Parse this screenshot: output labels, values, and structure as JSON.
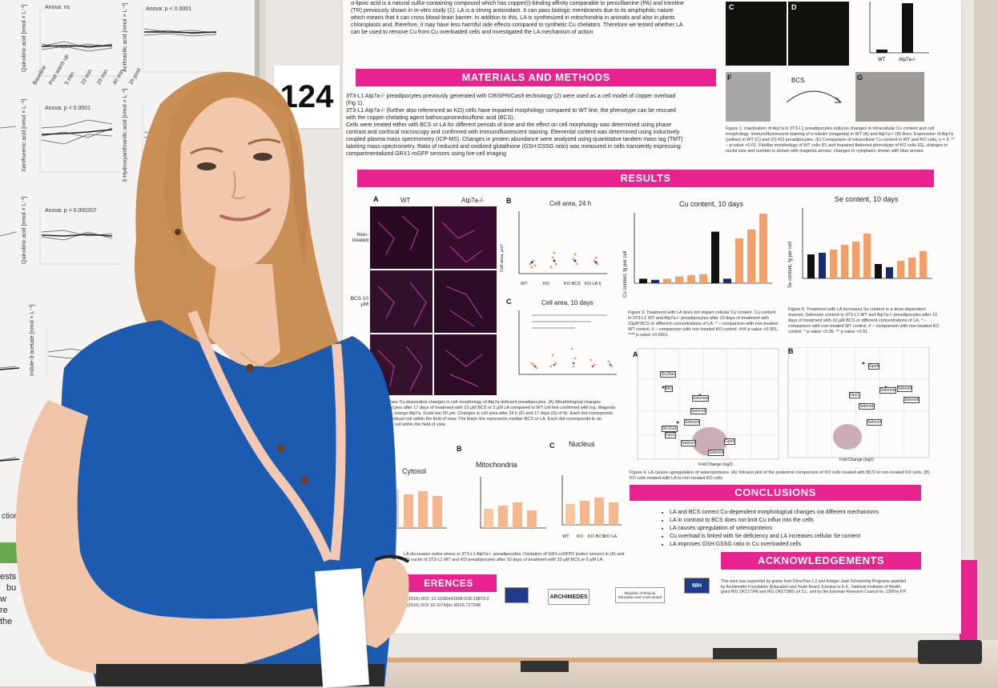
{
  "poster_number": "124",
  "poster": {
    "intro_lines": [
      "α-lipoic acid is a natural sulfur-containing compound which has copper(I)-binding affinity comparable to penicillamine (PA) and trientine",
      "(TR) previously shown in in-vitro study (1). LA is a strong antioxidant. It can pass biologic membranes due to its amphiphilic nature",
      "which means that it can cross blood-brain barrier. In addition to this, LA is synthesized in mitochondria in animals and also in plants",
      "chloroplasts and, therefore, it may have less harmful side effects compared to synthetic Cu chelators. Therefore we tested whether LA",
      "can be used to remove Cu from Cu overloaded cells and investigated the LA mechanism of action"
    ],
    "materials_title": "MATERIALS AND METHODS",
    "materials_lines": [
      "3T3-L1 Atp7a-/- preadipocytes previously generated with CRISPR/Cas9 technology (2) were used as a cell model of copper overload",
      "(Fig 1).",
      "3T3-L1 Atp7a-/- (further also referenced as KO) cells have impaired morphology compared to WT line, the phenotype can be rescued",
      "with the copper-chelating agent bathocuproinedisulfonic acid (BCS).",
      "Cells were treated either with BCS or LA for different periods of time and the effect on cell morphology was determined using phase",
      "contrast and confocal microscopy and confirmed with immunofluorescent staining. Elemental content was determined using inductively",
      "coupled plasma mass spectrometry (ICP-MS). Changes in protein abundance were analyzed using quantitative tandem mass tag (TMT)",
      "labeling mass-spectrometry. Ratio of reduced and oxidized glutathione (GSH:GSSG ratio) was measured in cells transiently expressing",
      "compartmentalized GRX1-roGFP sensors using live-cell imaging"
    ],
    "results_title": "RESULTS",
    "conclusions_title": "CONCLUSIONS",
    "conclusions": [
      "LA and BCS correct Cu-dependent morphological changes via different mechanisms",
      "LA in contrast to BCS does not limit Cu influx into the cells",
      "LA causes upregulation of selenoproteins",
      "Cu overload is linked with Se deficiency and LA increases cellular Se content",
      "LA improves GSH:GSSG ratio in Cu overloaded cells"
    ],
    "ack_title": "ACKNOWLEDGEMENTS",
    "ack_lines": [
      "This work was supported by grants from Dora Plus 1.2 and Kristjan Jaak Scholarship Programs awarded",
      "by Archimedes Foundation (Education and Youth Board, Estonia) to E.K., National Institutes of Health",
      "grant R01 DK117248 and R01 DK071865-14 S.L. and by the Estonian Research Council no. 1289 to P.P."
    ],
    "references_title": "ERENCES",
    "refs": [
      "(2016) DOI: 10.1038/s41598-018-19873-2",
      "(2016) DOI 10.1074/jbc.M116.727248"
    ],
    "panel_labels": {
      "A": "A",
      "B": "B",
      "C": "C",
      "D": "D",
      "F": "F",
      "G": "G"
    },
    "fig1_small_labels": [
      "WT",
      "Atp7a-/-",
      "BCS",
      "WT",
      "Atp7a-/-"
    ],
    "fig1_caption": "Figure 1. Inactivation of Atp7a in 3T3-L1 preadipocytes induces changes in intracellular Cu content and cell morphology. Immunofluorescent staining of α-tubulin (magenta) in WT (A) and Atp7a-/- (B) lines. Expression of Atp7a (yellow) in WT (C) and (D) KO preadipocytes. (E) Comparison of intracellular Cu content in WT and KO cells, n = 3, ** – p-value <0.01. Fibrillar morphology of WT cells (F) and impaired flattened phenotype of KO cells (G), changes in nuclei size and number is shown with magenta arrows, changes in cytoplasm shown with blue arrows.",
    "micro_col_labels": [
      "WT",
      "Atp7a-/-"
    ],
    "micro_row_labels": [
      "Non-treated",
      "BCS 10 µM"
    ],
    "cell_area_24": "Cell area, 24 h",
    "cell_area_10": "Cell area, 10 days",
    "cell_area_axis": "Cell area, µm²",
    "cell_area_cats": [
      "WT",
      "KO",
      "KO BCS",
      "KO LA 5"
    ],
    "cu_title": "Cu content, 10 days",
    "cu_axis": "Cu content, fg per cell",
    "se_title": "Se content, 10 days",
    "se_axis": "Se content, fg per cell",
    "fig3_caption": "Figure 3. Treatment with LA does not impact cellular Cu content. Cu content in 3T3-L1 WT and Atp7a-/- preadipocytes after 10 days of treatment with 10µM BCS or different concentrations of LA. * – comparison with non-treated WT control, # – comparison with non-treated KO control. ### p-value <0.001, **** p-value <0.0001",
    "fig5_caption": "Figure 5. Treatment with LA increases Se content in a dose-dependent manner. Selenium content in 3T3-L1 WT and Atp7a-/- preadipocytes after 10 days of treatment with 10 µM BCS or different concentrations of LA. * – comparison with non-treated WT control, # – comparison with non-treated KO control. * p-value <0.05, ** p-value <0.01",
    "volcano_labels": [
      "A",
      "B"
    ],
    "volcano_x": "Fold Change (log2)",
    "volcano_genes_a": [
      "Slc30a1",
      "Mt1",
      "Selenow",
      "Selenok",
      "Selenoh",
      "Slc11a2",
      "Gpx1",
      "Selenot",
      "Gpx4",
      "Selenon"
    ],
    "volcano_genes_b": [
      "Gpx4",
      "Selenow",
      "Gpx1",
      "Selenok",
      "Selenoh",
      "Selenot",
      "Selenof"
    ],
    "fig4_caption": "Figure 4. LA causes upregulation of selenoproteins. (A) Volcano plot of the proteome comparison of KO cells treated with BCS to non-treated KO cells. (B) KO cells treated with LA to non-treated KO cells",
    "redox_titles": [
      "Cytosol",
      "Mitochondria",
      "Nucleus"
    ],
    "redox_letters": [
      "B",
      "C"
    ],
    "redox_cats": [
      "WT",
      "KO",
      "KO BCS",
      "KO LA"
    ],
    "fig2_caption": "LA reverses Cu-dependent changes in cell morphology of Atp7a-deficient preadipocytes. (A) Morphological changes preadipocytes after 17 days of treatment with 10 µM BCS or 5 µM LA compared to WT cell line confirmed with ing. Magenta α-tubulin, orange Atp7a. Scale bar 50 µm. Changes in cell area after 24 h (F) and 17 days (G) of lls. Each dot corresponds to an individual cell within the field of view. The black line represents median BCS or LA. Each dot corresponds to an individual cell within the field of view.",
    "fig6_caption": "LA decreases redox stress in 3T3-L1 Atp7a-/- preadipocytes. Oxidation of GRX-roGFP2 (redox sensor) in (A) and (C) nuclei of 3T3-L1 WT and KO preadipocytes after 10 days of treatment with 10 µM BCS or 5 µM LA.",
    "logos": [
      "ARCHIMEDES",
      "Republic of Estonia Education and Youth Board",
      "NIH"
    ]
  },
  "left_poster": {
    "titles": [
      "Anova: ns",
      "Anova: p < 0.0001",
      "Anova: p < 0.0001",
      "Anova: p = 0.000207"
    ],
    "axis_labels": [
      "Quinolinic acid [nmol × L⁻¹]",
      "Anthranilic acid [nmol × L⁻¹]",
      "Xanthurenic acid [nmol × L⁻¹]",
      "3-Hydroxyanthranilic acid [nmol × L⁻¹]",
      "Quinolinic acid [nmol × L⁻¹]",
      "Indole-3-acetate [nmol × L⁻¹]"
    ],
    "x_ticks": [
      "Baseline",
      "Post warm up",
      "5 min",
      "10 min",
      "20 min",
      "40 min",
      "1h post"
    ],
    "fragments": [
      "ction of",
      "ests",
      "bu",
      "w",
      "re",
      "the"
    ]
  },
  "colors": {
    "accent": "#e8238f",
    "bar_black": "#111111",
    "bar_navy": "#1b2c6e",
    "bar_orange": "#f0a06a",
    "bar_light_orange": "#f5b88e",
    "shirt": "#1d5bb0",
    "hair": "#c98f55",
    "lanyard": "#f4c9b4",
    "orange_rail": "#e07a3a"
  }
}
